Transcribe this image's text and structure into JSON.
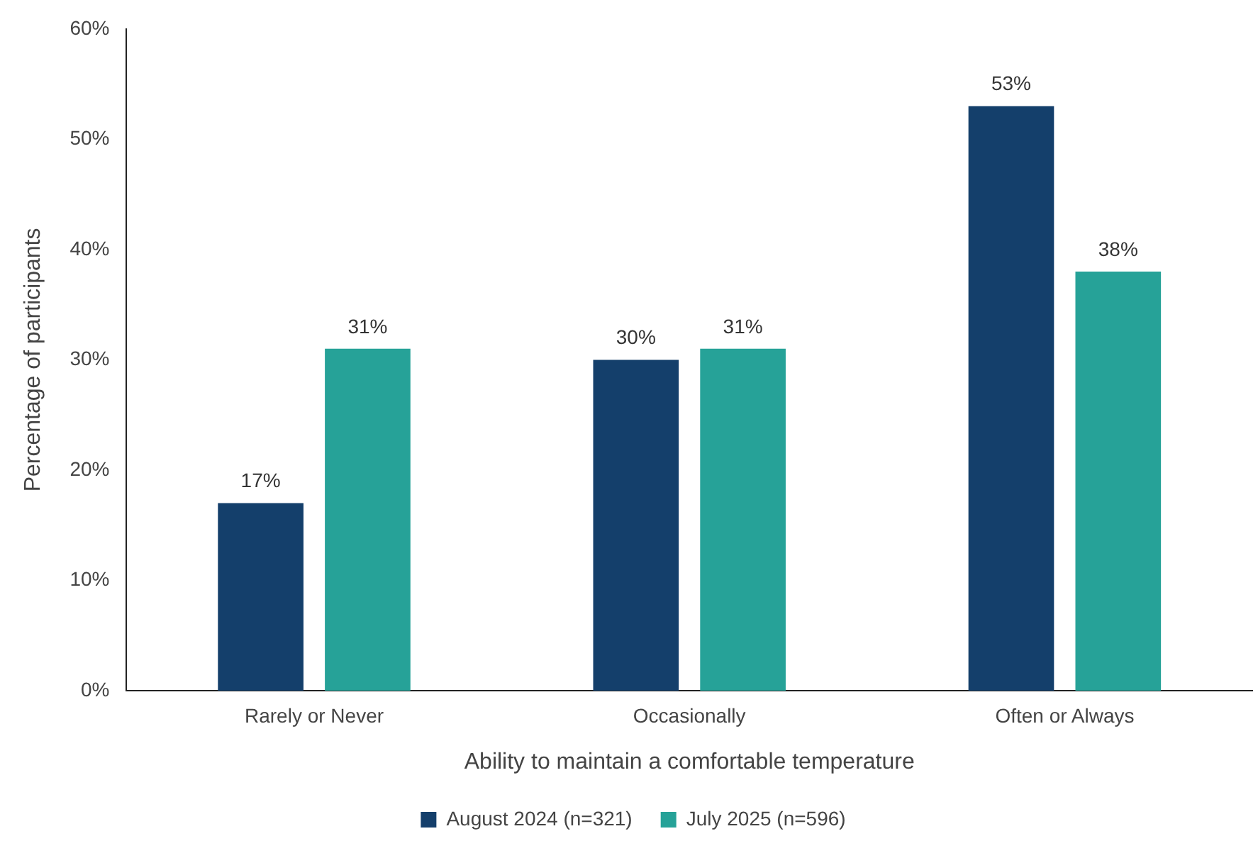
{
  "chart_data": {
    "type": "bar",
    "xlabel": "Ability to maintain a comfortable temperature",
    "ylabel": "Percentage of participants",
    "categories": [
      "Rarely or Never",
      "Occasionally",
      "Often or Always"
    ],
    "series": [
      {
        "name": "August 2024 (n=321)",
        "color": "#143f6b",
        "values": [
          17,
          30,
          53
        ],
        "value_labels": [
          "17%",
          "30%",
          "53%"
        ]
      },
      {
        "name": "July 2025 (n=596)",
        "color": "#26a298",
        "values": [
          31,
          31,
          38
        ],
        "value_labels": [
          "31%",
          "31%",
          "38%"
        ]
      }
    ],
    "ylim": [
      0,
      60
    ],
    "yticks": [
      {
        "value": 0,
        "label": "0%"
      },
      {
        "value": 10,
        "label": "10%"
      },
      {
        "value": 20,
        "label": "20%"
      },
      {
        "value": 30,
        "label": "30%"
      },
      {
        "value": 40,
        "label": "40%"
      },
      {
        "value": 50,
        "label": "50%"
      },
      {
        "value": 60,
        "label": "60%"
      }
    ],
    "grid": false,
    "legend": "bottom"
  }
}
